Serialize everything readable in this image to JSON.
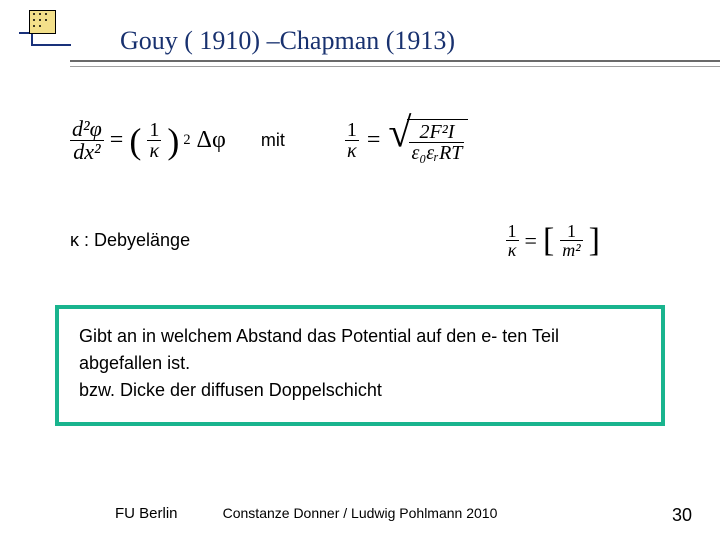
{
  "title": "Gouy ( 1910) –Chapman (1913)",
  "equations": {
    "row1": {
      "left": {
        "lhs_num": "d²φ",
        "lhs_den": "dx²",
        "eq": "=",
        "paren_num": "1",
        "paren_den": "κ",
        "exponent": "2",
        "delta": "Δφ"
      },
      "connector": "mit",
      "right": {
        "lhs_num": "1",
        "lhs_den": "κ",
        "eq": "=",
        "sqrt_num": "2F²I",
        "sqrt_den": "ε₀εᵣRT"
      }
    },
    "kappa_label": "κ : Debyelänge",
    "kappa_unit": {
      "lhs_num": "1",
      "lhs_den": "κ",
      "eq": "=",
      "unit_num": "1",
      "unit_den": "m²"
    }
  },
  "description": {
    "line1": "Gibt an in welchem Abstand das Potential auf den e- ten Teil",
    "line2": "abgefallen ist.",
    "line3": "bzw. Dicke der diffusen Doppelschicht"
  },
  "footer": {
    "left": "FU Berlin",
    "center": "Constanze Donner / Ludwig Pohlmann      2010",
    "page": "30"
  },
  "colors": {
    "title_color": "#18316f",
    "box_border": "#19b48e",
    "logo_bg": "#f3e08a",
    "logo_line": "#19317a"
  }
}
